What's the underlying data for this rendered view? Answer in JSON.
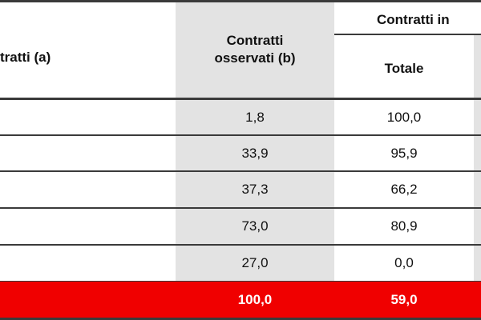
{
  "header": {
    "col_a": "tratti (a)",
    "col_b": "Contratti osservati (b)",
    "col_b_line1": "Contratti",
    "col_b_line2": "osservati (b)",
    "group": "Contratti in",
    "totale": "Totale"
  },
  "rows": [
    {
      "observed": "1,8",
      "totale": "100,0"
    },
    {
      "observed": "33,9",
      "totale": "95,9"
    },
    {
      "observed": "37,3",
      "totale": "66,2"
    },
    {
      "observed": "73,0",
      "totale": "80,9"
    },
    {
      "observed": "27,0",
      "totale": "0,0"
    }
  ],
  "total_row": {
    "observed": "100,0",
    "totale": "59,0"
  },
  "colors": {
    "total_row_bg": "#f00000",
    "shaded_column": "#e3e3e3",
    "rule": "#3a3a3a"
  }
}
